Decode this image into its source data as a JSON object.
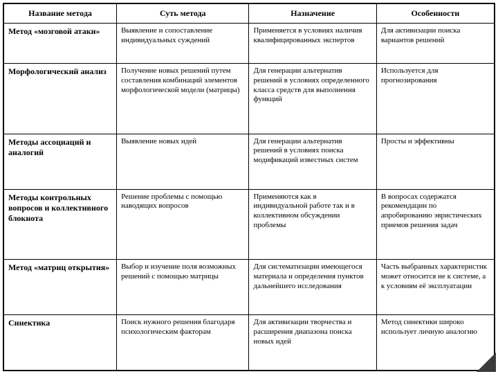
{
  "table": {
    "columns": [
      "Название метода",
      "Суть метода",
      "Назначение",
      "Особенности"
    ],
    "col_widths_pct": [
      23,
      27,
      26,
      24
    ],
    "header_fontsize": 12,
    "cell_fontsize": 11,
    "name_col_fontsize": 12,
    "border_color": "#000000",
    "background_color": "#ffffff",
    "text_color": "#000000",
    "corner_fold_color": "#3a3a3a",
    "rows": [
      {
        "name": "Метод «мозговой атаки»",
        "essence": "Выявление и сопоставление индивидуальных суждений",
        "purpose": "Применяется в условиях наличия квалифицированных экспертов",
        "features": "Для активизации поиска вариантов решений"
      },
      {
        "name": "Морфологический анализ",
        "essence": "Получение новых решений путем составления комбинаций элементов морфологической модели (матрицы)",
        "purpose": "Для генерации альтернатив решений в условиях определенного класса средств для выполнения функций",
        "features": "Используется для прогнозирования"
      },
      {
        "name": "Методы ассоциаций и аналогий",
        "essence": "Выявление новых идей",
        "purpose": "Для генерации альтернатив решений в условиях поиска модификаций известных систем",
        "features": "Просты и эффективны"
      },
      {
        "name": "Методы контрольных вопросов и коллективного блокнота",
        "essence": "Решение проблемы с помощью наводящих вопросов",
        "purpose": "Применяются как в индивидуальной работе так и в коллективном обсуждении проблемы",
        "features": "В вопросах содержатся рекомендации по апробированию эвристических приемов решения задач"
      },
      {
        "name": "Метод «матриц открытия»",
        "essence": "Выбор и изучение поля возможных решений с помощью матрицы",
        "purpose": "Для систематизации имеющегося материала и определения пунктов дальнейшего исследования",
        "features": "Часть выбранных характеристик может относится не к системе, а к условиям её эксплуатации"
      },
      {
        "name": "Синектика",
        "essence": "Поиск нужного решения благодаря психологическим факторам",
        "purpose": "Для активизации творчества и расширения диапазона поиска новых идей",
        "features": "Метод синектики широко использует личную аналогию"
      }
    ]
  }
}
